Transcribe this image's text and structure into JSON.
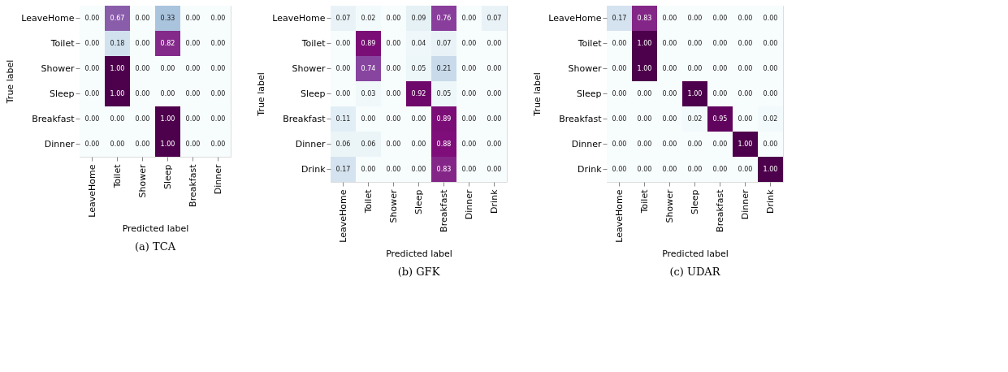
{
  "chart_data": [
    {
      "type": "heatmap",
      "xlabel": "Predicted label",
      "ylabel": "True label",
      "annotations": [
        "(a) TCA"
      ],
      "categories": [
        "LeaveHome",
        "Toilet",
        "Shower",
        "Sleep",
        "Breakfast",
        "Dinner"
      ],
      "y_categories": [
        "LeaveHome",
        "Toilet",
        "Shower",
        "Sleep",
        "Breakfast",
        "Dinner"
      ],
      "cells": [
        [
          0,
          0.67,
          0,
          0.33,
          0,
          0
        ],
        [
          0,
          0.18,
          0,
          0.82,
          0,
          0
        ],
        [
          0,
          1,
          0,
          0,
          0,
          0
        ],
        [
          0,
          1,
          0,
          0,
          0,
          0
        ],
        [
          0,
          0,
          0,
          1,
          0,
          0
        ],
        [
          0,
          0,
          0,
          1,
          0,
          0
        ]
      ],
      "cell_labels": [
        [
          "0.00",
          "0.67",
          "0.00",
          "0.33",
          "0.00",
          "0.00"
        ],
        [
          "0.00",
          "0.18",
          "0.00",
          "0.82",
          "0.00",
          "0.00"
        ],
        [
          "0.00",
          "1.00",
          "0.00",
          "0.00",
          "0.00",
          "0.00"
        ],
        [
          "0.00",
          "1.00",
          "0.00",
          "0.00",
          "0.00",
          "0.00"
        ],
        [
          "0.00",
          "0.00",
          "0.00",
          "1.00",
          "0.00",
          "0.00"
        ],
        [
          "0.00",
          "0.00",
          "0.00",
          "1.00",
          "0.00",
          "0.00"
        ]
      ]
    },
    {
      "type": "heatmap",
      "xlabel": "Predicted label",
      "ylabel": "True label",
      "annotations": [
        "(b) GFK"
      ],
      "categories": [
        "LeaveHome",
        "Toilet",
        "Shower",
        "Sleep",
        "Breakfast",
        "Dinner",
        "Drink"
      ],
      "y_categories": [
        "LeaveHome",
        "Toilet",
        "Shower",
        "Sleep",
        "Breakfast",
        "Dinner",
        "Drink"
      ],
      "cells": [
        [
          0.07,
          0.02,
          0,
          0.09,
          0.76,
          0,
          0.07
        ],
        [
          0,
          0.89,
          0,
          0.04,
          0.07,
          0,
          0
        ],
        [
          0,
          0.74,
          0,
          0.05,
          0.21,
          0,
          0
        ],
        [
          0,
          0.03,
          0,
          0.92,
          0.05,
          0,
          0
        ],
        [
          0.11,
          0,
          0,
          0,
          0.89,
          0,
          0
        ],
        [
          0.06,
          0.06,
          0,
          0,
          0.88,
          0,
          0
        ],
        [
          0.17,
          0,
          0,
          0,
          0.83,
          0,
          0
        ]
      ],
      "cell_labels": [
        [
          "0.07",
          "0.02",
          "0.00",
          "0.09",
          "0.76",
          "0.00",
          "0.07"
        ],
        [
          "0.00",
          "0.89",
          "0.00",
          "0.04",
          "0.07",
          "0.00",
          "0.00"
        ],
        [
          "0.00",
          "0.74",
          "0.00",
          "0.05",
          "0.21",
          "0.00",
          "0.00"
        ],
        [
          "0.00",
          "0.03",
          "0.00",
          "0.92",
          "0.05",
          "0.00",
          "0.00"
        ],
        [
          "0.11",
          "0.00",
          "0.00",
          "0.00",
          "0.89",
          "0.00",
          "0.00"
        ],
        [
          "0.06",
          "0.06",
          "0.00",
          "0.00",
          "0.88",
          "0.00",
          "0.00"
        ],
        [
          "0.17",
          "0.00",
          "0.00",
          "0.00",
          "0.83",
          "0.00",
          "0.00"
        ]
      ]
    },
    {
      "type": "heatmap",
      "xlabel": "Predicted label",
      "ylabel": "True label",
      "annotations": [
        "(c) UDAR"
      ],
      "categories": [
        "LeaveHome",
        "Toilet",
        "Shower",
        "Sleep",
        "Breakfast",
        "Dinner",
        "Drink"
      ],
      "y_categories": [
        "LeaveHome",
        "Toilet",
        "Shower",
        "Sleep",
        "Breakfast",
        "Dinner",
        "Drink"
      ],
      "cells": [
        [
          0.17,
          0.83,
          0,
          0,
          0,
          0,
          0
        ],
        [
          0,
          1,
          0,
          0,
          0,
          0,
          0
        ],
        [
          0,
          1,
          0,
          0,
          0,
          0,
          0
        ],
        [
          0,
          0,
          0,
          1,
          0,
          0,
          0
        ],
        [
          0,
          0,
          0,
          0.02,
          0.95,
          0,
          0.02
        ],
        [
          0,
          0,
          0,
          0,
          0,
          1,
          0
        ],
        [
          0,
          0,
          0,
          0,
          0,
          0,
          1
        ]
      ],
      "cell_labels": [
        [
          "0.17",
          "0.83",
          "0.00",
          "0.00",
          "0.00",
          "0.00",
          "0.00"
        ],
        [
          "0.00",
          "1.00",
          "0.00",
          "0.00",
          "0.00",
          "0.00",
          "0.00"
        ],
        [
          "0.00",
          "1.00",
          "0.00",
          "0.00",
          "0.00",
          "0.00",
          "0.00"
        ],
        [
          "0.00",
          "0.00",
          "0.00",
          "1.00",
          "0.00",
          "0.00",
          "0.00"
        ],
        [
          "0.00",
          "0.00",
          "0.00",
          "0.02",
          "0.95",
          "0.00",
          "0.02"
        ],
        [
          "0.00",
          "0.00",
          "0.00",
          "0.00",
          "0.00",
          "1.00",
          "0.00"
        ],
        [
          "0.00",
          "0.00",
          "0.00",
          "0.00",
          "0.00",
          "0.00",
          "1.00"
        ]
      ]
    }
  ]
}
